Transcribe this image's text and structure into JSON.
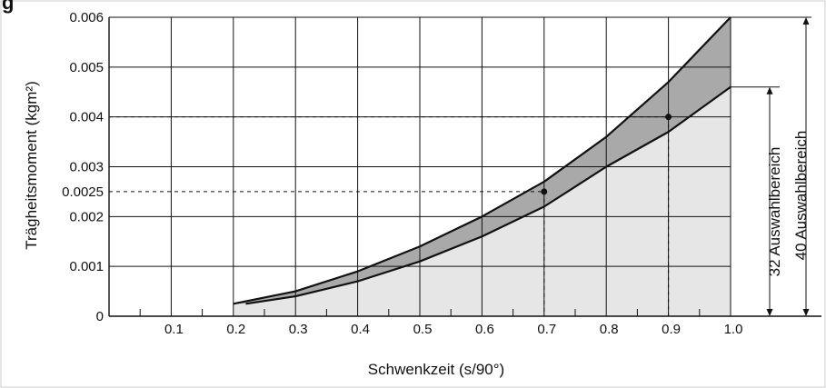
{
  "chart_data": {
    "type": "area",
    "title": "",
    "xlabel": "Schwenkzeit  (s/90°)",
    "ylabel": "Trägheitsmoment  (kgm²)",
    "xlim": [
      0.0,
      1.0
    ],
    "ylim": [
      0,
      0.006
    ],
    "x_ticks": [
      "0.1",
      "0.2",
      "0.3",
      "0.4",
      "0.5",
      "0.6",
      "0.7",
      "0.8",
      "0.9",
      "1.0"
    ],
    "y_ticks": [
      "0",
      "0.001",
      "0.002",
      "0.0025",
      "0.003",
      "0.004",
      "0.005",
      "0.006"
    ],
    "grid": true,
    "series": [
      {
        "name": "40",
        "x": [
          0.2,
          0.3,
          0.4,
          0.5,
          0.6,
          0.7,
          0.8,
          0.9,
          1.0
        ],
        "y": [
          0.00025,
          0.0005,
          0.0009,
          0.0014,
          0.002,
          0.0027,
          0.0036,
          0.0047,
          0.006
        ]
      },
      {
        "name": "32",
        "x": [
          0.22,
          0.3,
          0.4,
          0.5,
          0.6,
          0.7,
          0.8,
          0.9,
          1.0
        ],
        "y": [
          0.00025,
          0.0004,
          0.0007,
          0.0011,
          0.0016,
          0.0022,
          0.003,
          0.0037,
          0.0046
        ]
      }
    ],
    "points": [
      {
        "x": 0.7,
        "y": 0.0025
      },
      {
        "x": 0.9,
        "y": 0.004
      }
    ],
    "range_labels": [
      "32 Auswahlbereich",
      "40 Auswahlbereich"
    ],
    "colors": {
      "band": "#a9a9a9",
      "below": "#e6e6e6",
      "line": "#111111",
      "grid": "#111111"
    }
  },
  "header_fragment": "g"
}
